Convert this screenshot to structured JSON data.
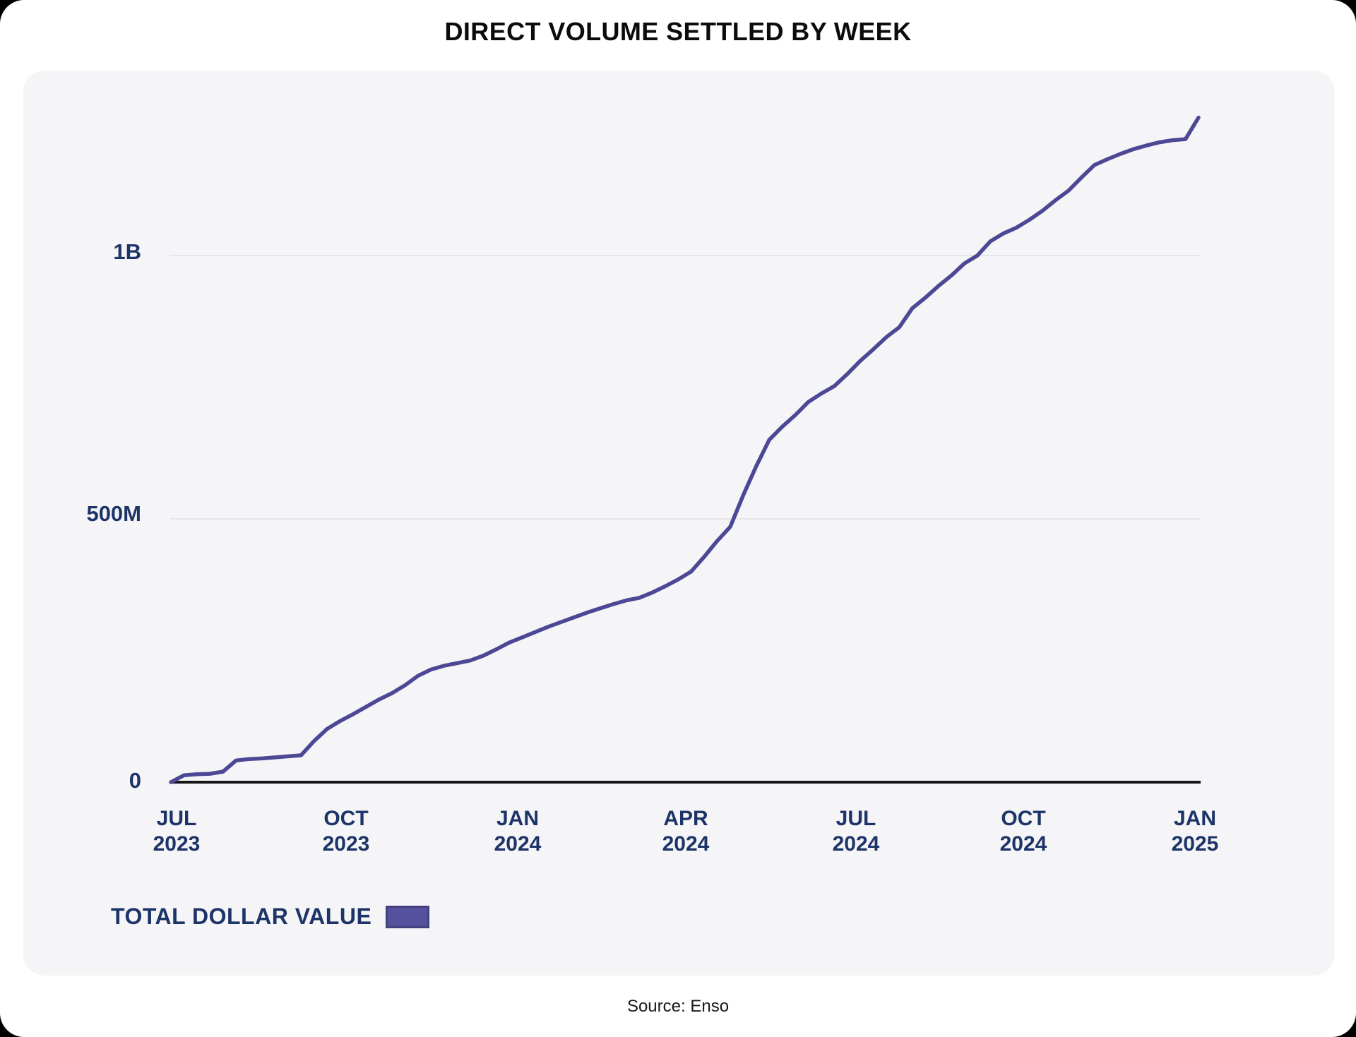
{
  "page": {
    "title": "DIRECT VOLUME SETTLED BY WEEK",
    "source": "Source: Enso"
  },
  "legend": {
    "label": "TOTAL DOLLAR VALUE"
  },
  "colors": {
    "line": "#4c4896",
    "swatch_fill": "#55519c",
    "swatch_border": "#454180",
    "axis_label": "#1d3468",
    "grid_line": "#e6e6e9",
    "axis_line": "#17171b",
    "card_background": "#f5f5f7",
    "page_background": "#ffffff",
    "title_text": "#0c0c0f"
  },
  "chart_data": {
    "type": "line",
    "title": "DIRECT VOLUME SETTLED BY WEEK",
    "x_unit": "week",
    "x_start": "JUL 2023",
    "x_end": "JAN 2025",
    "grid": "horizontal-only",
    "legend_position": "bottom-left",
    "ylim_millions": [
      0,
      1300
    ],
    "y_ticks": [
      {
        "label": "0",
        "value_millions": 0
      },
      {
        "label": "500M",
        "value_millions": 500
      },
      {
        "label": "1B",
        "value_millions": 1000
      }
    ],
    "x_tick_labels": [
      [
        "JUL",
        "2023"
      ],
      [
        "OCT",
        "2023"
      ],
      [
        "JAN",
        "2024"
      ],
      [
        "APR",
        "2024"
      ],
      [
        "JUL",
        "2024"
      ],
      [
        "OCT",
        "2024"
      ],
      [
        "JAN",
        "2025"
      ]
    ],
    "series": [
      {
        "name": "TOTAL DOLLAR VALUE",
        "unit": "USD millions (cumulative, approx.)",
        "values_millions": [
          0,
          13,
          15,
          16,
          20,
          41,
          44,
          45,
          47,
          49,
          51,
          78,
          101,
          116,
          129,
          143,
          157,
          169,
          184,
          202,
          214,
          221,
          226,
          231,
          240,
          252,
          265,
          275,
          285,
          295,
          304,
          313,
          322,
          330,
          338,
          345,
          350,
          360,
          372,
          385,
          400,
          428,
          458,
          485,
          545,
          600,
          650,
          675,
          697,
          722,
          738,
          752,
          775,
          800,
          822,
          845,
          864,
          900,
          920,
          942,
          962,
          985,
          1000,
          1027,
          1042,
          1053,
          1068,
          1085,
          1105,
          1123,
          1148,
          1172,
          1183,
          1193,
          1202,
          1209,
          1215,
          1219,
          1221,
          1262
        ]
      }
    ]
  }
}
